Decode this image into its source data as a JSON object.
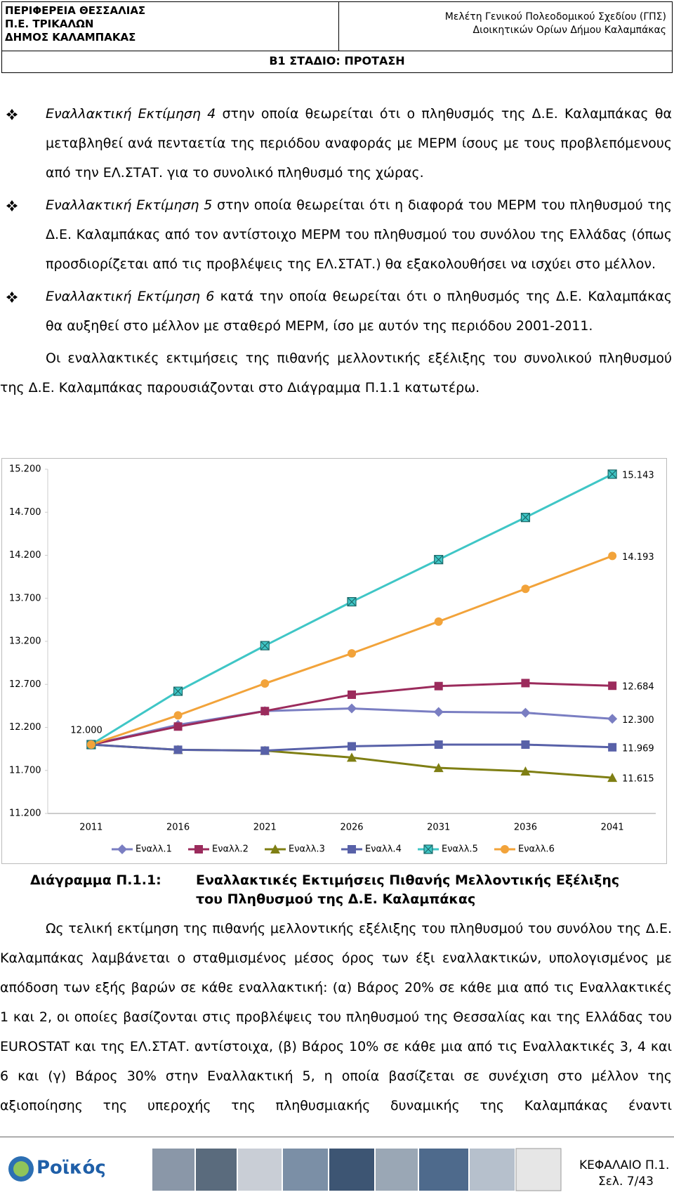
{
  "header": {
    "left": [
      "ΠΕΡΙΦΕΡΕΙΑ ΘΕΣΣΑΛΙΑΣ",
      "Π.Ε. ΤΡΙΚΑΛΩΝ",
      "ΔΗΜΟΣ ΚΑΛΑΜΠΑΚΑΣ"
    ],
    "right": [
      "Μελέτη Γενικού Πολεοδομικού Σχεδίου (ΓΠΣ)",
      "Διοικητικών Ορίων Δήμου Καλαμπάκας"
    ],
    "stage": "Β1 ΣΤΑΔΙΟ: ΠΡΟΤΑΣΗ"
  },
  "bullets": [
    {
      "emph": "Εναλλακτική Εκτίμηση 4",
      "text": "στην οποία θεωρείται ότι ο πληθυσμός της Δ.Ε. Καλαμπάκας θα μεταβληθεί ανά πενταετία της περιόδου αναφοράς με ΜΕΡΜ ίσους με τους προβλεπόμενους από την ΕΛ.ΣΤΑΤ. για το συνολικό πληθυσμό της χώρας."
    },
    {
      "emph": "Εναλλακτική Εκτίμηση 5",
      "text": "στην οποία θεωρείται ότι η διαφορά του ΜΕΡΜ του πληθυσμού της Δ.Ε. Καλαμπάκας από τον αντίστοιχο ΜΕΡΜ του πληθυσμού του συνόλου της Ελλάδας (όπως προσδιορίζεται από τις προβλέψεις της ΕΛ.ΣΤΑΤ.) θα εξακολουθήσει να ισχύει στο μέλλον."
    },
    {
      "emph": "Εναλλακτική Εκτίμηση 6",
      "text": "κατά την οποία θεωρείται ότι ο πληθυσμός της Δ.Ε. Καλαμπάκας θα αυξηθεί στο μέλλον με σταθερό ΜΕΡΜ, ίσο με αυτόν της περιόδου 2001-2011."
    }
  ],
  "paragraphs": [
    "Οι εναλλακτικές εκτιμήσεις της πιθανής μελλοντικής εξέλιξης του συνολικού πληθυσμού της Δ.Ε. Καλαμπάκας παρουσιάζονται στο Διάγραμμα Π.1.1 κατωτέρω.",
    "Ως τελική εκτίμηση της πιθανής μελλοντικής εξέλιξης του πληθυσμού του συνόλου της Δ.Ε. Καλαμπάκας λαμβάνεται ο σταθμισμένος μέσος όρος των έξι εναλλακτικών, υπολογισμένος με απόδοση των εξής βαρών σε κάθε εναλλακτική: (α) Βάρος 20% σε κάθε μια από τις Εναλλακτικές 1 και 2, οι οποίες βασίζονται στις προβλέψεις του πληθυσμού της Θεσσαλίας και της Ελλάδας του EUROSTAT και της ΕΛ.ΣΤΑΤ. αντίστοιχα, (β) Βάρος 10% σε κάθε μια από τις Εναλλακτικές 3, 4 και 6 και (γ) Βάρος 30% στην Εναλλακτική 5, η οποία βασίζεται σε συνέχιση στο μέλλον της αξιοποίησης της υπεροχής της πληθυσμιακής δυναμικής της Καλαμπάκας έναντι"
  ],
  "caption": {
    "label": "Διάγραμμα Π.1.1:",
    "title": "Εναλλακτικές Εκτιμήσεις Πιθανής Μελλοντικής Εξέλιξης του Πληθυσμού της Δ.Ε. Καλαμπάκας"
  },
  "chart_data": {
    "type": "line",
    "categories": [
      "2011",
      "2016",
      "2021",
      "2026",
      "2031",
      "2036",
      "2041"
    ],
    "ylim": [
      11200,
      15200
    ],
    "yticks": [
      {
        "value": 11200,
        "label": "11.200"
      },
      {
        "value": 11700,
        "label": "11.700"
      },
      {
        "value": 12200,
        "label": "12.200"
      },
      {
        "value": 12700,
        "label": "12.700"
      },
      {
        "value": 13200,
        "label": "13.200"
      },
      {
        "value": 13700,
        "label": "13.700"
      },
      {
        "value": 14200,
        "label": "14.200"
      },
      {
        "value": 14700,
        "label": "14.700"
      },
      {
        "value": 15200,
        "label": "15.200"
      }
    ],
    "grid": false,
    "legend": "bottom",
    "series": [
      {
        "name": "Εναλλ.1",
        "color": "#7a7ec2",
        "marker": "diamond",
        "values": [
          12000,
          12230,
          12390,
          12420,
          12380,
          12370,
          12300
        ],
        "value_labels": [
          "12.000",
          null,
          null,
          null,
          null,
          null,
          "12.300"
        ]
      },
      {
        "name": "Εναλλ.2",
        "color": "#9b2b5c",
        "marker": "square",
        "values": [
          12000,
          12210,
          12390,
          12580,
          12680,
          12715,
          12684
        ],
        "value_labels": [
          null,
          null,
          null,
          null,
          null,
          null,
          "12.684"
        ]
      },
      {
        "name": "Εναλλ.3",
        "color": "#7f7f14",
        "marker": "triangle",
        "values": [
          12000,
          11940,
          11930,
          11850,
          11730,
          11690,
          11615
        ],
        "value_labels": [
          null,
          null,
          null,
          null,
          null,
          null,
          "11.615"
        ]
      },
      {
        "name": "Εναλλ.4",
        "color": "#5861a8",
        "marker": "square",
        "values": [
          12000,
          11940,
          11930,
          11980,
          12000,
          12000,
          11969
        ],
        "value_labels": [
          null,
          null,
          null,
          null,
          null,
          null,
          "11.969"
        ]
      },
      {
        "name": "Εναλλ.5",
        "color": "#3fc6c6",
        "marker": "xsquare",
        "values": [
          12000,
          12620,
          13150,
          13660,
          14150,
          14640,
          15143
        ],
        "value_labels": [
          null,
          null,
          null,
          null,
          null,
          null,
          "15.143"
        ]
      },
      {
        "name": "Εναλλ.6",
        "color": "#f2a33a",
        "marker": "circle",
        "values": [
          12000,
          12340,
          12710,
          13060,
          13430,
          13810,
          14193
        ],
        "value_labels": [
          null,
          null,
          null,
          null,
          null,
          null,
          "14.193"
        ]
      }
    ]
  },
  "footer": {
    "logo": "Ροϊκός",
    "chapter": "ΚΕΦΑΛΑΙΟ Π.1.",
    "page": "Σελ. 7/43"
  }
}
